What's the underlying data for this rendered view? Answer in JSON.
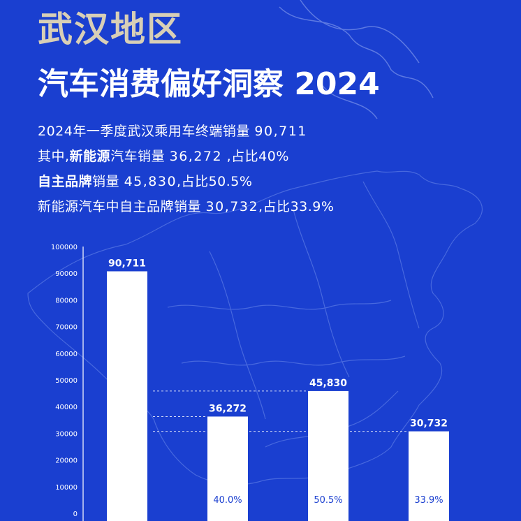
{
  "header": {
    "title_line1": "武汉地区",
    "title_line2": "汽车消费偏好洞察 2024"
  },
  "stats": {
    "line1": {
      "text": "2024年一季度武汉乘用车终端销量 ",
      "value": "90,711"
    },
    "line2": {
      "prefix": "其中,",
      "bold": "新能源",
      "text": "汽车销量 ",
      "value": "36,272",
      "suffix": " ,占比40%"
    },
    "line3": {
      "bold": "自主品牌",
      "text": "销量 ",
      "value": "45,830",
      "suffix": ",占比50.5%"
    },
    "line4": {
      "text": "新能源汽车中自主品牌销量 ",
      "value": "30,732",
      "suffix": ",占比33.9%"
    }
  },
  "chart_data": {
    "type": "bar",
    "title": "",
    "xlabel": "",
    "ylabel": "",
    "ylim": [
      0,
      100000
    ],
    "yticks": [
      0,
      10000,
      20000,
      30000,
      40000,
      50000,
      60000,
      70000,
      80000,
      90000,
      100000
    ],
    "categories": [
      "",
      "",
      "",
      ""
    ],
    "values": [
      90711,
      36272,
      45830,
      30732
    ],
    "data_labels": [
      "90,711",
      "36,272",
      "45,830",
      "30,732"
    ],
    "share_labels": [
      "",
      "40.0%",
      "50.5%",
      "33.9%"
    ],
    "bar_color": "#ffffff",
    "grid": false,
    "reference_lines": true
  },
  "colors": {
    "background": "#1a3fd0",
    "title_accent": "#d8cfb6",
    "text": "#ffffff"
  }
}
